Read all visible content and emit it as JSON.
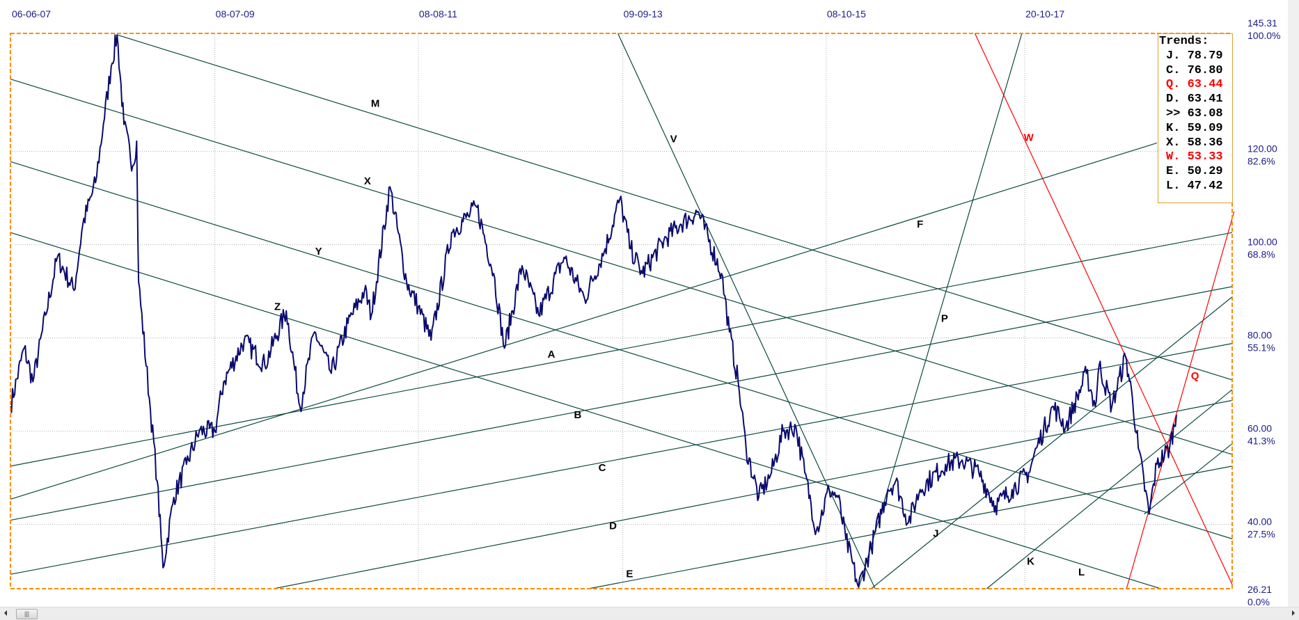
{
  "chart_data": {
    "type": "line",
    "x_axis": {
      "type": "date",
      "tick_labels": [
        "06-06-07",
        "08-07-09",
        "08-08-11",
        "09-09-13",
        "08-10-15",
        "20-10-17"
      ],
      "tick_dates_decimal_year": [
        2007.43,
        2009.52,
        2011.6,
        2013.69,
        2015.77,
        2017.8
      ],
      "range_decimal_year": [
        2007.43,
        2019.92
      ]
    },
    "y_axis": {
      "position": "right",
      "range": [
        26.21,
        145.31
      ],
      "ticks": [
        {
          "value": 145.31,
          "label": "145.31",
          "pct": "100.0%"
        },
        {
          "value": 120,
          "label": "120.00",
          "pct": "82.6%"
        },
        {
          "value": 100,
          "label": "100.00",
          "pct": "68.8%"
        },
        {
          "value": 80,
          "label": "80.00",
          "pct": "55.1%"
        },
        {
          "value": 60,
          "label": "60.00",
          "pct": "41.3%"
        },
        {
          "value": 40,
          "label": "40.00",
          "pct": "27.5%"
        },
        {
          "value": 26.21,
          "label": "26.21",
          "pct": "0.0%"
        }
      ]
    },
    "grid": true,
    "colors": {
      "price": "#0a0a6e",
      "trend": "#0b4a3f",
      "trend_red": "#ff0000",
      "frame": "#ff8c00",
      "axis_text": "#1a1a8c",
      "grid": "#b0b0b0"
    },
    "price_series": [
      [
        2007.43,
        65.3
      ],
      [
        2007.57,
        77.8
      ],
      [
        2007.66,
        70.6
      ],
      [
        2007.79,
        84.9
      ],
      [
        2007.91,
        97.3
      ],
      [
        2008.08,
        90.2
      ],
      [
        2008.17,
        104.4
      ],
      [
        2008.3,
        113.3
      ],
      [
        2008.38,
        125.8
      ],
      [
        2008.46,
        138.2
      ],
      [
        2008.52,
        145.0
      ],
      [
        2008.59,
        125.8
      ],
      [
        2008.68,
        116.9
      ],
      [
        2008.72,
        122.2
      ],
      [
        2008.74,
        92.0
      ],
      [
        2008.85,
        67.1
      ],
      [
        2008.93,
        49.3
      ],
      [
        2008.99,
        30.7
      ],
      [
        2009.1,
        45.8
      ],
      [
        2009.23,
        52.9
      ],
      [
        2009.36,
        60.0
      ],
      [
        2009.52,
        60.0
      ],
      [
        2009.61,
        70.6
      ],
      [
        2009.82,
        79.5
      ],
      [
        2010.03,
        74.2
      ],
      [
        2010.25,
        85.8
      ],
      [
        2010.39,
        65.3
      ],
      [
        2010.54,
        81.3
      ],
      [
        2010.71,
        72.4
      ],
      [
        2010.88,
        83.1
      ],
      [
        2011.05,
        90.2
      ],
      [
        2011.12,
        84.9
      ],
      [
        2011.31,
        112.4
      ],
      [
        2011.48,
        92.0
      ],
      [
        2011.6,
        86.7
      ],
      [
        2011.73,
        79.5
      ],
      [
        2011.94,
        102.6
      ],
      [
        2012.11,
        106.2
      ],
      [
        2012.2,
        108.0
      ],
      [
        2012.37,
        93.8
      ],
      [
        2012.48,
        77.8
      ],
      [
        2012.66,
        95.5
      ],
      [
        2012.83,
        84.9
      ],
      [
        2013.09,
        97.3
      ],
      [
        2013.3,
        88.4
      ],
      [
        2013.51,
        99.1
      ],
      [
        2013.66,
        109.8
      ],
      [
        2013.77,
        99.1
      ],
      [
        2013.89,
        93.8
      ],
      [
        2014.11,
        100.9
      ],
      [
        2014.28,
        104.4
      ],
      [
        2014.46,
        107.1
      ],
      [
        2014.7,
        93.8
      ],
      [
        2014.78,
        81.3
      ],
      [
        2014.87,
        70.6
      ],
      [
        2014.95,
        56.4
      ],
      [
        2015.08,
        45.8
      ],
      [
        2015.21,
        51.1
      ],
      [
        2015.33,
        60.0
      ],
      [
        2015.46,
        60.9
      ],
      [
        2015.55,
        51.1
      ],
      [
        2015.67,
        38.7
      ],
      [
        2015.8,
        47.5
      ],
      [
        2015.89,
        45.8
      ],
      [
        2015.97,
        36.9
      ],
      [
        2016.1,
        26.6
      ],
      [
        2016.23,
        35.1
      ],
      [
        2016.4,
        47.5
      ],
      [
        2016.48,
        49.3
      ],
      [
        2016.61,
        40.4
      ],
      [
        2016.73,
        47.5
      ],
      [
        2016.99,
        52.9
      ],
      [
        2017.16,
        53.8
      ],
      [
        2017.33,
        51.1
      ],
      [
        2017.5,
        44.0
      ],
      [
        2017.67,
        47.5
      ],
      [
        2017.84,
        51.1
      ],
      [
        2017.92,
        56.4
      ],
      [
        2018.09,
        65.3
      ],
      [
        2018.22,
        60.9
      ],
      [
        2018.43,
        72.4
      ],
      [
        2018.52,
        65.3
      ],
      [
        2018.56,
        74.2
      ],
      [
        2018.69,
        65.3
      ],
      [
        2018.83,
        76.0
      ],
      [
        2018.9,
        67.1
      ],
      [
        2018.96,
        56.4
      ],
      [
        2019.07,
        42.2
      ],
      [
        2019.15,
        52.9
      ],
      [
        2019.28,
        56.4
      ],
      [
        2019.35,
        63.5
      ]
    ],
    "trend_lines": [
      {
        "name": "M",
        "color": "trend",
        "from": [
          2008.52,
          145.0
        ],
        "to": [
          2019.92,
          71.0
        ],
        "label_at": [
          2011.16,
          130.3
        ]
      },
      {
        "name": "X",
        "color": "trend",
        "from": [
          2007.43,
          135.5
        ],
        "to": [
          2019.92,
          55.0
        ],
        "label_at": [
          2011.08,
          113.7
        ]
      },
      {
        "name": "Y",
        "color": "trend",
        "from": [
          2007.43,
          117.8
        ],
        "to": [
          2019.92,
          36.9
        ],
        "label_at": [
          2010.58,
          98.6
        ]
      },
      {
        "name": "Z",
        "color": "trend",
        "from": [
          2007.43,
          102.6
        ],
        "to": [
          2019.19,
          26.21
        ],
        "label_at": [
          2010.16,
          86.7
        ]
      },
      {
        "name": "V",
        "color": "trend",
        "from": [
          2013.64,
          145.31
        ],
        "to": [
          2016.27,
          26.21
        ],
        "label_at": [
          2014.21,
          122.7
        ]
      },
      {
        "name": "W",
        "color": "trend_red",
        "from": [
          2017.29,
          145.31
        ],
        "to": [
          2019.92,
          27.1
        ],
        "label_at": [
          2017.84,
          123.0
        ]
      },
      {
        "name": "F",
        "color": "trend",
        "from": [
          2007.43,
          45.4
        ],
        "to": [
          2019.15,
          121.8
        ],
        "label_at": [
          2016.73,
          104.4
        ]
      },
      {
        "name": "P",
        "color": "trend",
        "from": [
          2016.1,
          26.21
        ],
        "to": [
          2017.77,
          145.31
        ],
        "label_at": [
          2016.98,
          84.2
        ]
      },
      {
        "name": "A",
        "color": "trend",
        "from": [
          2007.43,
          52.5
        ],
        "to": [
          2019.92,
          102.6
        ],
        "label_at": [
          2012.96,
          76.5
        ]
      },
      {
        "name": "B",
        "color": "trend",
        "from": [
          2007.43,
          40.9
        ],
        "to": [
          2019.92,
          91.0
        ],
        "label_at": [
          2013.23,
          63.5
        ]
      },
      {
        "name": "C",
        "color": "trend",
        "from": [
          2007.43,
          29.3
        ],
        "to": [
          2019.92,
          78.8
        ],
        "label_at": [
          2013.48,
          52.2
        ]
      },
      {
        "name": "D",
        "color": "trend",
        "from": [
          2010.12,
          26.21
        ],
        "to": [
          2019.92,
          66.6
        ],
        "label_at": [
          2013.59,
          39.7
        ]
      },
      {
        "name": "E",
        "color": "trend",
        "from": [
          2013.34,
          26.21
        ],
        "to": [
          2019.92,
          52.5
        ],
        "label_at": [
          2013.76,
          29.4
        ]
      },
      {
        "name": "J",
        "color": "trend",
        "from": [
          2016.23,
          26.21
        ],
        "to": [
          2019.92,
          88.8
        ],
        "label_at": [
          2016.89,
          38.1
        ]
      },
      {
        "name": "K",
        "color": "trend",
        "from": [
          2017.41,
          26.21
        ],
        "to": [
          2019.92,
          68.9
        ],
        "label_at": [
          2017.86,
          32.1
        ]
      },
      {
        "name": "L",
        "color": "trend",
        "from": [
          2019.02,
          42.2
        ],
        "to": [
          2019.92,
          57.3
        ],
        "label_at": [
          2018.38,
          29.8
        ]
      },
      {
        "name": "Q",
        "color": "trend_red",
        "from": [
          2018.84,
          26.21
        ],
        "to": [
          2019.94,
          107.1
        ],
        "label_at": [
          2019.54,
          71.9
        ]
      }
    ]
  },
  "trends_box": {
    "title": "Trends:",
    "rows": [
      {
        "label": "J. 78.79",
        "highlight": false
      },
      {
        "label": "C. 76.80",
        "highlight": false
      },
      {
        "label": "Q. 63.44",
        "highlight": true
      },
      {
        "label": "D. 63.41",
        "highlight": false
      },
      {
        "label": ">> 63.08",
        "highlight": false
      },
      {
        "label": "K. 59.09",
        "highlight": false
      },
      {
        "label": "X. 58.36",
        "highlight": false
      },
      {
        "label": "W. 53.33",
        "highlight": true
      },
      {
        "label": "E. 50.29",
        "highlight": false
      },
      {
        "label": "L. 47.42",
        "highlight": false
      }
    ]
  },
  "scrollbar": {
    "thumb_icon": "grip-icon",
    "thumb_glyph": "|||"
  }
}
